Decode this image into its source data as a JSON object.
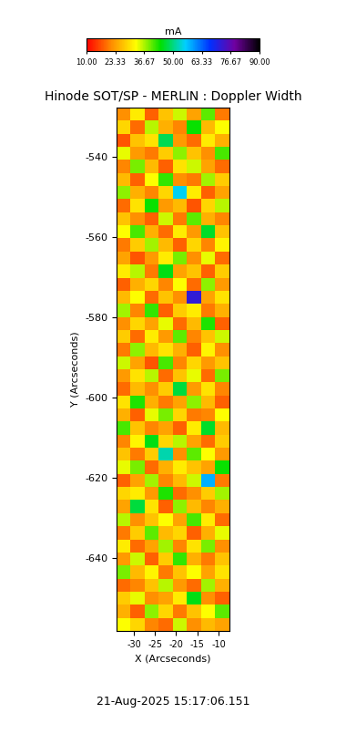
{
  "chart_data": {
    "type": "heatmap",
    "title": "Hinode SOT/SP - MERLIN : Doppler Width",
    "x_label": "X (Arcseconds)",
    "y_label": "Y (Arcseconds)",
    "xlim": [
      -34.1,
      -7.4
    ],
    "xticks": [
      -30,
      -25,
      -20,
      -15,
      -10
    ],
    "ylim": [
      -658.2,
      -527.7
    ],
    "yticks": [
      -640,
      -620,
      -600,
      -580,
      -560,
      -540
    ],
    "colorbar_label": "mA",
    "colorbar_range": [
      10,
      90
    ],
    "colorbar_ticks": [
      {
        "value": 10,
        "label": "10.00"
      },
      {
        "value": 23.33,
        "label": "23.33"
      },
      {
        "value": 36.67,
        "label": "36.67"
      },
      {
        "value": 50,
        "label": "50.00"
      },
      {
        "value": 63.33,
        "label": "63.33"
      },
      {
        "value": 76.67,
        "label": "76.67"
      },
      {
        "value": 90,
        "label": "90.00"
      }
    ],
    "annotations": [
      "21-Aug-2025 15:17:06.151"
    ],
    "cells": [
      [
        22,
        31,
        18,
        27,
        35,
        24,
        40,
        20
      ],
      [
        29,
        19,
        36,
        25,
        21,
        44,
        26,
        33
      ],
      [
        17,
        27,
        30,
        48,
        23,
        19,
        31,
        25
      ],
      [
        34,
        23,
        20,
        28,
        38,
        27,
        22,
        41
      ],
      [
        21,
        39,
        26,
        18,
        30,
        35,
        24,
        19
      ],
      [
        26,
        18,
        33,
        42,
        22,
        20,
        37,
        28
      ],
      [
        38,
        25,
        21,
        29,
        55,
        31,
        18,
        24
      ],
      [
        19,
        30,
        44,
        23,
        26,
        17,
        29,
        36
      ],
      [
        27,
        22,
        18,
        35,
        20,
        40,
        25,
        21
      ],
      [
        33,
        41,
        25,
        19,
        31,
        23,
        46,
        27
      ],
      [
        20,
        28,
        37,
        26,
        18,
        29,
        21,
        32
      ],
      [
        24,
        17,
        23,
        31,
        39,
        22,
        34,
        19
      ],
      [
        31,
        36,
        20,
        45,
        24,
        27,
        18,
        28
      ],
      [
        18,
        25,
        29,
        21,
        33,
        19,
        38,
        23
      ],
      [
        26,
        33,
        19,
        27,
        22,
        72,
        24,
        30
      ],
      [
        37,
        21,
        42,
        18,
        28,
        31,
        20,
        25
      ],
      [
        22,
        29,
        24,
        34,
        19,
        26,
        43,
        18
      ],
      [
        28,
        19,
        31,
        23,
        40,
        21,
        27,
        35
      ],
      [
        20,
        38,
        26,
        30,
        25,
        18,
        32,
        22
      ],
      [
        35,
        24,
        17,
        41,
        21,
        29,
        23,
        27
      ],
      [
        23,
        30,
        36,
        19,
        27,
        34,
        19,
        39
      ],
      [
        19,
        26,
        22,
        28,
        47,
        23,
        30,
        21
      ],
      [
        30,
        43,
        25,
        20,
        24,
        38,
        26,
        18
      ],
      [
        25,
        18,
        34,
        39,
        29,
        20,
        21,
        33
      ],
      [
        41,
        27,
        21,
        24,
        18,
        31,
        46,
        26
      ],
      [
        21,
        32,
        45,
        29,
        36,
        24,
        19,
        28
      ],
      [
        27,
        20,
        28,
        52,
        22,
        40,
        33,
        23
      ],
      [
        34,
        39,
        19,
        25,
        31,
        27,
        24,
        44
      ],
      [
        18,
        24,
        37,
        21,
        26,
        35,
        58,
        20
      ],
      [
        29,
        31,
        23,
        43,
        19,
        22,
        28,
        37
      ],
      [
        24,
        47,
        30,
        18,
        38,
        26,
        21,
        25
      ],
      [
        36,
        22,
        27,
        33,
        24,
        41,
        31,
        19
      ],
      [
        20,
        28,
        40,
        26,
        29,
        18,
        25,
        34
      ],
      [
        31,
        19,
        24,
        37,
        21,
        30,
        39,
        22
      ],
      [
        23,
        35,
        18,
        28,
        42,
        25,
        20,
        27
      ],
      [
        39,
        26,
        32,
        20,
        27,
        33,
        24,
        30
      ],
      [
        19,
        21,
        27,
        36,
        23,
        19,
        37,
        25
      ],
      [
        28,
        34,
        22,
        24,
        31,
        45,
        22,
        18
      ],
      [
        25,
        18,
        38,
        29,
        20,
        27,
        33,
        40
      ],
      [
        33,
        29,
        21,
        19,
        35,
        22,
        26,
        24
      ]
    ]
  }
}
